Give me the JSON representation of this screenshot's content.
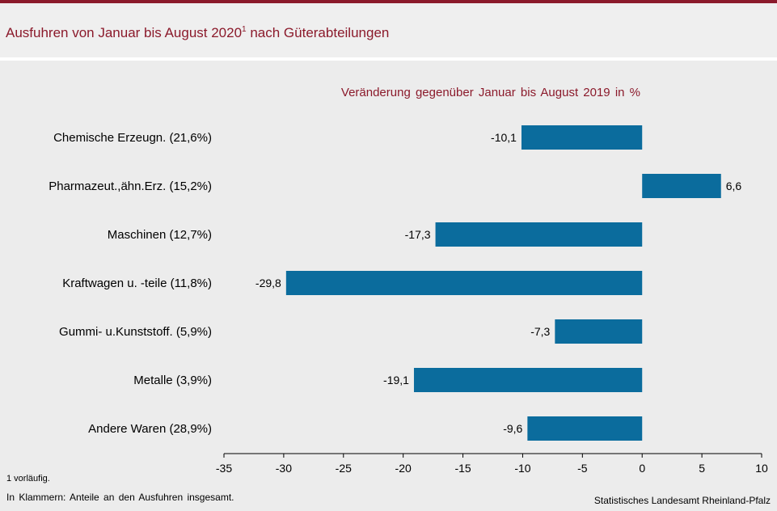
{
  "header": {
    "title": "Ausfuhren von Januar bis August 2020",
    "title_footnote_mark": "1",
    "title_suffix": " nach Güterabteilungen"
  },
  "colors": {
    "accent": "#8b1a2b",
    "bar": "#0b6c9d",
    "background": "#ececec"
  },
  "chart_data": {
    "type": "bar",
    "orientation": "horizontal",
    "title": "Ausfuhren von Januar bis August 2020 nach Güterabteilungen",
    "subtitle": "Veränderung gegenüber Januar bis August 2019 in %",
    "categories": [
      "Chemische Erzeugn. (21,6%)",
      "Pharmazeut.,ähn.Erz. (15,2%)",
      "Maschinen (12,7%)",
      "Kraftwagen u. -teile (11,8%)",
      "Gummi- u.Kunststoff. (5,9%)",
      "Metalle (3,9%)",
      "Andere Waren (28,9%)"
    ],
    "values": [
      -10.1,
      6.6,
      -17.3,
      -29.8,
      -7.3,
      -19.1,
      -9.6
    ],
    "value_labels": [
      "-10,1",
      "6,6",
      "-17,3",
      "-29,8",
      "-7,3",
      "-19,1",
      "-9,6"
    ],
    "xlim": [
      -35,
      10
    ],
    "xticks": [
      -35,
      -30,
      -25,
      -20,
      -15,
      -10,
      -5,
      0,
      5,
      10
    ],
    "xtick_labels": [
      "-35",
      "-30",
      "-25",
      "-20",
      "-15",
      "-10",
      "-5",
      "0",
      "5",
      "10"
    ],
    "grid": false,
    "legend": "none"
  },
  "footer": {
    "footnote": "1 vorläufig.",
    "note": "In Klammern: Anteile an den Ausfuhren insgesamt.",
    "source": "Statistisches Landesamt Rheinland-Pfalz"
  }
}
